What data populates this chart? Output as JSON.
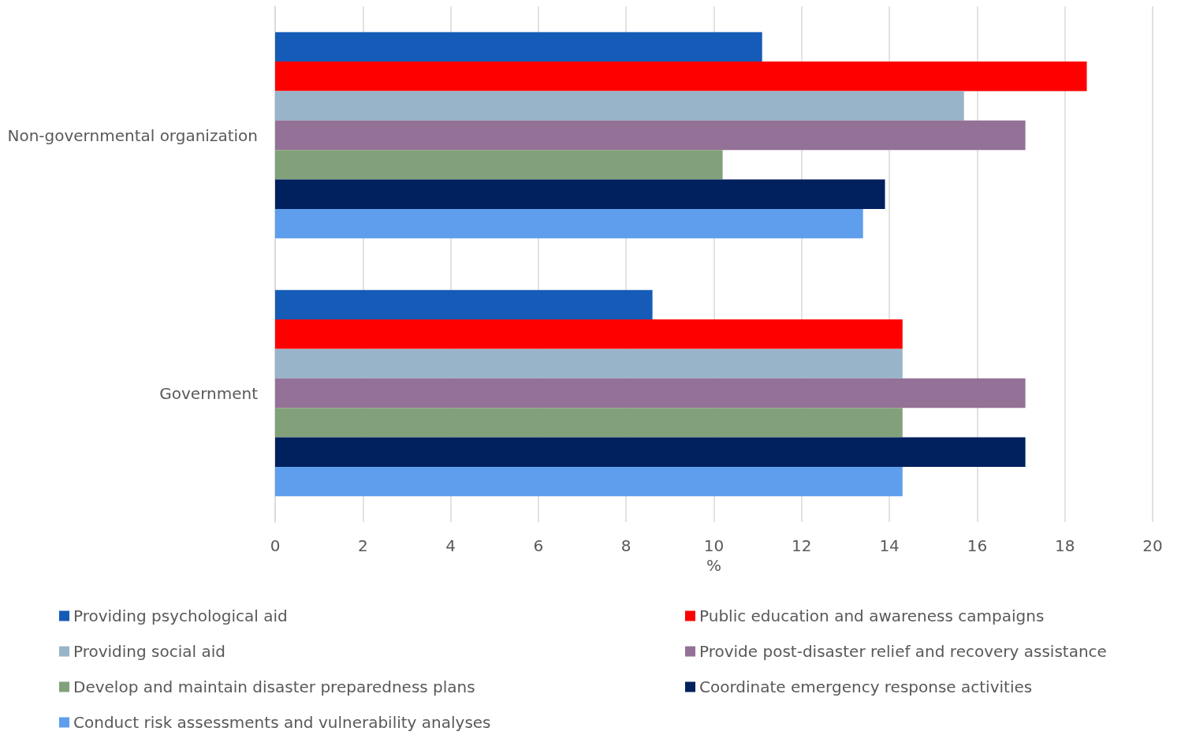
{
  "chart_data": {
    "type": "bar",
    "orientation": "horizontal",
    "categories": [
      "Non-governmental organization",
      "Government"
    ],
    "xlabel": "%",
    "xlim": [
      0,
      20
    ],
    "xticks": [
      0,
      2,
      4,
      6,
      8,
      10,
      12,
      14,
      16,
      18,
      20
    ],
    "grid": "x",
    "legend": "bottom",
    "series": [
      {
        "name": "Providing psychological aid",
        "color": "#155bb7",
        "values": [
          11.1,
          8.6
        ]
      },
      {
        "name": "Public education and awareness campaigns",
        "color": "#ff0000",
        "values": [
          18.5,
          14.3
        ]
      },
      {
        "name": "Providing social aid",
        "color": "#98b4c8",
        "values": [
          15.7,
          14.3
        ]
      },
      {
        "name": "Provide post-disaster relief and recovery assistance",
        "color": "#947196",
        "values": [
          17.1,
          17.1
        ]
      },
      {
        "name": "Develop and maintain disaster preparedness plans",
        "color": "#82a17b",
        "values": [
          10.2,
          14.3
        ]
      },
      {
        "name": "Coordinate emergency response activities",
        "color": "#00205e",
        "values": [
          13.9,
          17.1
        ]
      },
      {
        "name": "Conduct risk assessments and vulnerability analyses",
        "color": "#5f9eec",
        "values": [
          13.4,
          14.3
        ]
      }
    ]
  }
}
